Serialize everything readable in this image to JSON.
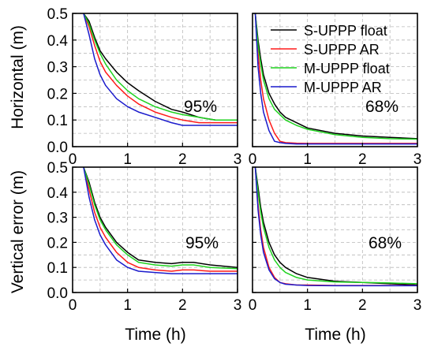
{
  "figure": {
    "x_axis_label": "Time (h)",
    "y_axis_label_top": "Horizontal (m)",
    "y_axis_label_bottom": "Vertical error (m)"
  },
  "series_styles": [
    {
      "name": "S-UPPP float",
      "color": "#000000"
    },
    {
      "name": "S-UPPP AR",
      "color": "#ff1a1a"
    },
    {
      "name": "M-UPPP float",
      "color": "#1fd21f"
    },
    {
      "name": "M-UPPP AR",
      "color": "#1a1acc"
    }
  ],
  "chart_data": [
    {
      "id": "horizontal-95",
      "type": "line",
      "annotation": "95%",
      "ylabel": "Horizontal (m)",
      "xlim": [
        0,
        3
      ],
      "ylim": [
        0,
        0.5
      ],
      "xticks": [
        "0",
        "1",
        "2",
        "3"
      ],
      "yticks": [
        "0.0",
        "0.1",
        "0.2",
        "0.3",
        "0.4",
        "0.5"
      ],
      "grid": true,
      "legend": "none",
      "x": [
        0.2,
        0.3,
        0.4,
        0.5,
        0.6,
        0.8,
        1.0,
        1.2,
        1.5,
        1.8,
        2.0,
        2.3,
        2.6,
        3.0
      ],
      "series": [
        {
          "name": "S-UPPP float",
          "values": [
            0.5,
            0.47,
            0.41,
            0.36,
            0.33,
            0.28,
            0.24,
            0.21,
            0.17,
            0.14,
            0.13,
            0.11,
            0.1,
            0.1
          ]
        },
        {
          "name": "S-UPPP AR",
          "values": [
            0.5,
            0.45,
            0.38,
            0.32,
            0.28,
            0.23,
            0.19,
            0.16,
            0.13,
            0.11,
            0.1,
            0.09,
            0.09,
            0.09
          ]
        },
        {
          "name": "M-UPPP float",
          "values": [
            0.5,
            0.46,
            0.4,
            0.35,
            0.31,
            0.25,
            0.21,
            0.18,
            0.15,
            0.13,
            0.12,
            0.11,
            0.1,
            0.1
          ]
        },
        {
          "name": "M-UPPP AR",
          "values": [
            0.5,
            0.42,
            0.33,
            0.27,
            0.23,
            0.18,
            0.15,
            0.13,
            0.11,
            0.09,
            0.08,
            0.08,
            0.08,
            0.08
          ]
        }
      ]
    },
    {
      "id": "horizontal-68",
      "type": "line",
      "annotation": "68%",
      "xlim": [
        0,
        3
      ],
      "ylim": [
        0,
        0.5
      ],
      "xticks": [
        "0",
        "1",
        "2",
        "3"
      ],
      "grid": true,
      "legend": "top-right",
      "x": [
        0.05,
        0.1,
        0.15,
        0.2,
        0.3,
        0.4,
        0.5,
        0.6,
        0.8,
        1.0,
        1.5,
        2.0,
        2.5,
        3.0
      ],
      "series": [
        {
          "name": "S-UPPP float",
          "values": [
            0.5,
            0.4,
            0.33,
            0.27,
            0.2,
            0.16,
            0.13,
            0.11,
            0.09,
            0.07,
            0.05,
            0.04,
            0.035,
            0.03
          ]
        },
        {
          "name": "S-UPPP AR",
          "values": [
            0.5,
            0.35,
            0.25,
            0.18,
            0.1,
            0.05,
            0.02,
            0.015,
            0.013,
            0.012,
            0.012,
            0.012,
            0.012,
            0.012
          ]
        },
        {
          "name": "M-UPPP float",
          "values": [
            0.5,
            0.38,
            0.31,
            0.25,
            0.18,
            0.14,
            0.12,
            0.1,
            0.08,
            0.065,
            0.045,
            0.035,
            0.03,
            0.028
          ]
        },
        {
          "name": "M-UPPP AR",
          "values": [
            0.5,
            0.3,
            0.2,
            0.13,
            0.06,
            0.02,
            0.015,
            0.012,
            0.01,
            0.01,
            0.01,
            0.01,
            0.01,
            0.01
          ]
        }
      ]
    },
    {
      "id": "vertical-95",
      "type": "line",
      "annotation": "95%",
      "ylabel": "Vertical error (m)",
      "xlabel": "Time (h)",
      "xlim": [
        0,
        3
      ],
      "ylim": [
        0,
        0.5
      ],
      "xticks": [
        "0",
        "1",
        "2",
        "3"
      ],
      "yticks": [
        "0.0",
        "0.1",
        "0.2",
        "0.3",
        "0.4",
        "0.5"
      ],
      "grid": true,
      "legend": "none",
      "x": [
        0.2,
        0.3,
        0.4,
        0.5,
        0.6,
        0.8,
        1.0,
        1.2,
        1.5,
        1.8,
        2.0,
        2.2,
        2.5,
        3.0
      ],
      "series": [
        {
          "name": "S-UPPP float",
          "values": [
            0.5,
            0.44,
            0.36,
            0.3,
            0.26,
            0.2,
            0.16,
            0.13,
            0.12,
            0.115,
            0.12,
            0.12,
            0.11,
            0.1
          ]
        },
        {
          "name": "S-UPPP AR",
          "values": [
            0.5,
            0.41,
            0.32,
            0.26,
            0.22,
            0.16,
            0.12,
            0.1,
            0.09,
            0.085,
            0.09,
            0.09,
            0.085,
            0.085
          ]
        },
        {
          "name": "M-UPPP float",
          "values": [
            0.5,
            0.43,
            0.35,
            0.29,
            0.25,
            0.19,
            0.15,
            0.12,
            0.11,
            0.105,
            0.11,
            0.11,
            0.1,
            0.095
          ]
        },
        {
          "name": "M-UPPP AR",
          "values": [
            0.5,
            0.38,
            0.29,
            0.23,
            0.19,
            0.13,
            0.1,
            0.085,
            0.08,
            0.075,
            0.075,
            0.075,
            0.075,
            0.075
          ]
        }
      ]
    },
    {
      "id": "vertical-68",
      "type": "line",
      "annotation": "68%",
      "xlabel": "Time (h)",
      "xlim": [
        0,
        3
      ],
      "ylim": [
        0,
        0.5
      ],
      "xticks": [
        "0",
        "1",
        "2",
        "3"
      ],
      "grid": true,
      "legend": "none",
      "x": [
        0.05,
        0.1,
        0.15,
        0.2,
        0.3,
        0.4,
        0.5,
        0.6,
        0.8,
        1.0,
        1.5,
        2.0,
        2.5,
        3.0
      ],
      "series": [
        {
          "name": "S-UPPP float",
          "values": [
            0.5,
            0.42,
            0.34,
            0.28,
            0.2,
            0.15,
            0.12,
            0.1,
            0.075,
            0.06,
            0.045,
            0.04,
            0.035,
            0.03
          ]
        },
        {
          "name": "S-UPPP AR",
          "values": [
            0.5,
            0.35,
            0.25,
            0.18,
            0.1,
            0.06,
            0.04,
            0.035,
            0.03,
            0.03,
            0.028,
            0.028,
            0.028,
            0.028
          ]
        },
        {
          "name": "M-UPPP float",
          "values": [
            0.5,
            0.4,
            0.32,
            0.26,
            0.18,
            0.13,
            0.1,
            0.08,
            0.06,
            0.05,
            0.042,
            0.04,
            0.038,
            0.035
          ]
        },
        {
          "name": "M-UPPP AR",
          "values": [
            0.5,
            0.33,
            0.23,
            0.16,
            0.09,
            0.055,
            0.04,
            0.033,
            0.03,
            0.028,
            0.027,
            0.027,
            0.027,
            0.027
          ]
        }
      ]
    }
  ]
}
